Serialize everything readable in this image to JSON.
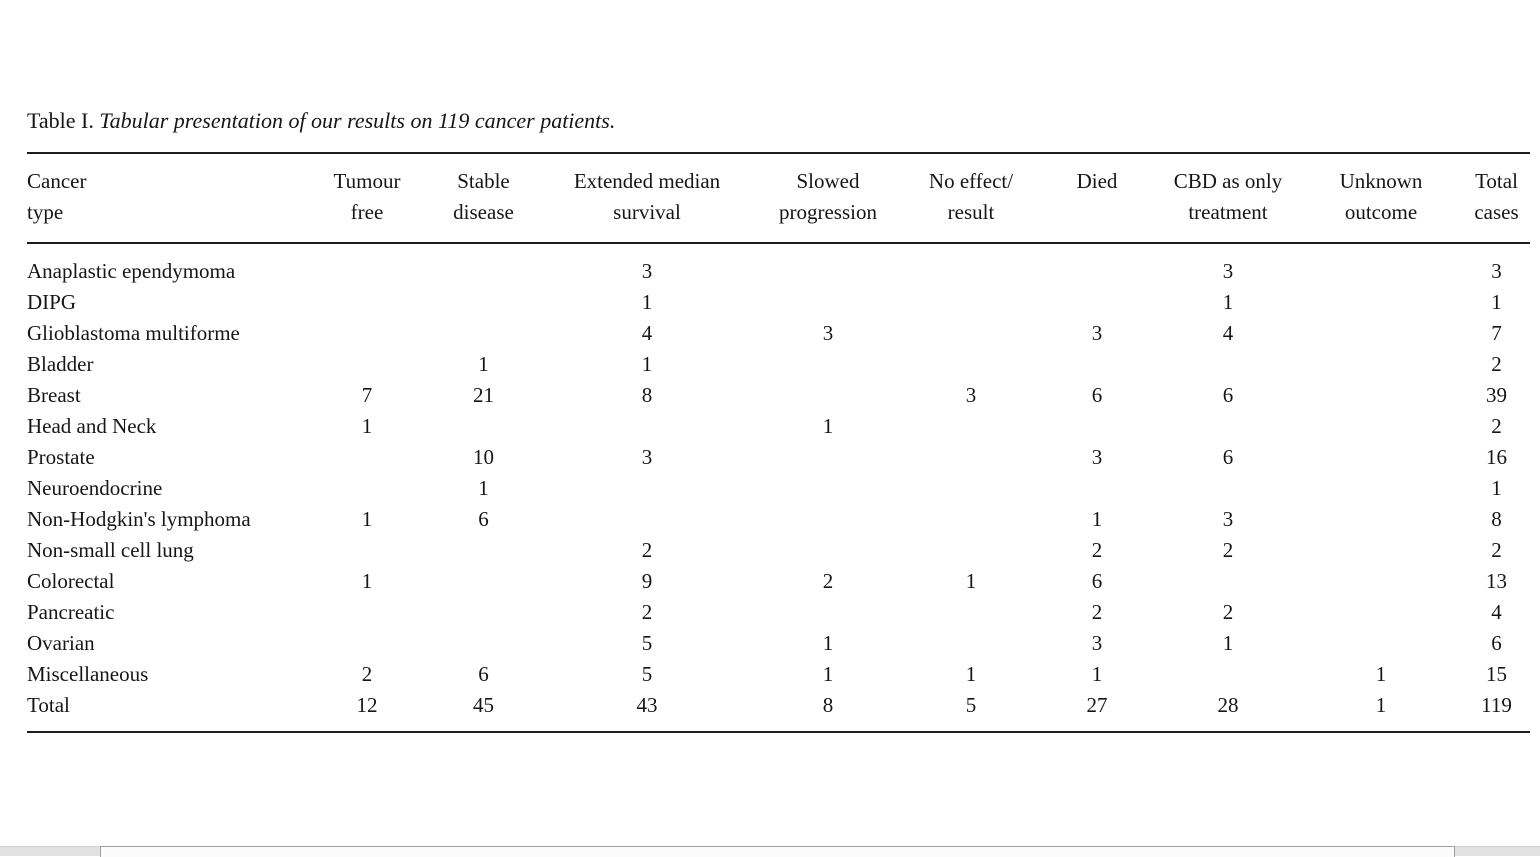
{
  "caption": {
    "label": "Table I.",
    "text": "Tabular presentation of our results on 119 cancer patients."
  },
  "table": {
    "columns": [
      {
        "name": "cancer-type",
        "lines": [
          "Cancer",
          "type"
        ]
      },
      {
        "name": "tumour-free",
        "lines": [
          "Tumour",
          "free"
        ]
      },
      {
        "name": "stable-disease",
        "lines": [
          "Stable",
          "disease"
        ]
      },
      {
        "name": "extended-median-survival",
        "lines": [
          "Extended median",
          "survival"
        ]
      },
      {
        "name": "slowed-progression",
        "lines": [
          "Slowed",
          "progression"
        ]
      },
      {
        "name": "no-effect-result",
        "lines": [
          "No effect/",
          "result"
        ]
      },
      {
        "name": "died",
        "lines": [
          "Died"
        ]
      },
      {
        "name": "cbd-as-only-treatment",
        "lines": [
          "CBD as only",
          "treatment"
        ]
      },
      {
        "name": "unknown-outcome",
        "lines": [
          "Unknown",
          "outcome"
        ]
      },
      {
        "name": "total-cases",
        "lines": [
          "Total",
          "cases"
        ]
      }
    ],
    "rows": [
      [
        "Anaplastic ependymoma",
        "",
        "",
        "3",
        "",
        "",
        "",
        "3",
        "",
        "3"
      ],
      [
        "DIPG",
        "",
        "",
        "1",
        "",
        "",
        "",
        "1",
        "",
        "1"
      ],
      [
        "Glioblastoma multiforme",
        "",
        "",
        "4",
        "3",
        "",
        "3",
        "4",
        "",
        "7"
      ],
      [
        "Bladder",
        "",
        "1",
        "1",
        "",
        "",
        "",
        "",
        "",
        "2"
      ],
      [
        "Breast",
        "7",
        "21",
        "8",
        "",
        "3",
        "6",
        "6",
        "",
        "39"
      ],
      [
        "Head and Neck",
        "1",
        "",
        "",
        "1",
        "",
        "",
        "",
        "",
        "2"
      ],
      [
        "Prostate",
        "",
        "10",
        "3",
        "",
        "",
        "3",
        "6",
        "",
        "16"
      ],
      [
        "Neuroendocrine",
        "",
        "1",
        "",
        "",
        "",
        "",
        "",
        "",
        "1"
      ],
      [
        "Non-Hodgkin's lymphoma",
        "1",
        "6",
        "",
        "",
        "",
        "1",
        "3",
        "",
        "8"
      ],
      [
        "Non-small cell lung",
        "",
        "",
        "2",
        "",
        "",
        "2",
        "2",
        "",
        "2"
      ],
      [
        "Colorectal",
        "1",
        "",
        "9",
        "2",
        "1",
        "6",
        "",
        "",
        "13"
      ],
      [
        "Pancreatic",
        "",
        "",
        "2",
        "",
        "",
        "2",
        "2",
        "",
        "4"
      ],
      [
        "Ovarian",
        "",
        "",
        "5",
        "1",
        "",
        "3",
        "1",
        "",
        "6"
      ],
      [
        "Miscellaneous",
        "2",
        "6",
        "5",
        "1",
        "1",
        "1",
        "",
        "1",
        "15"
      ],
      [
        "Total",
        "12",
        "45",
        "43",
        "8",
        "5",
        "27",
        "28",
        "1",
        "119"
      ]
    ]
  },
  "colors": {
    "rule": "#1d1d1d",
    "text": "#161616",
    "scrollbar_track": "#e1e1e1",
    "scrollbar_thumb": "#fbfbfb",
    "scrollbar_thumb_border": "#9f9f9f"
  },
  "scrollbar": {
    "orientation": "horizontal"
  }
}
